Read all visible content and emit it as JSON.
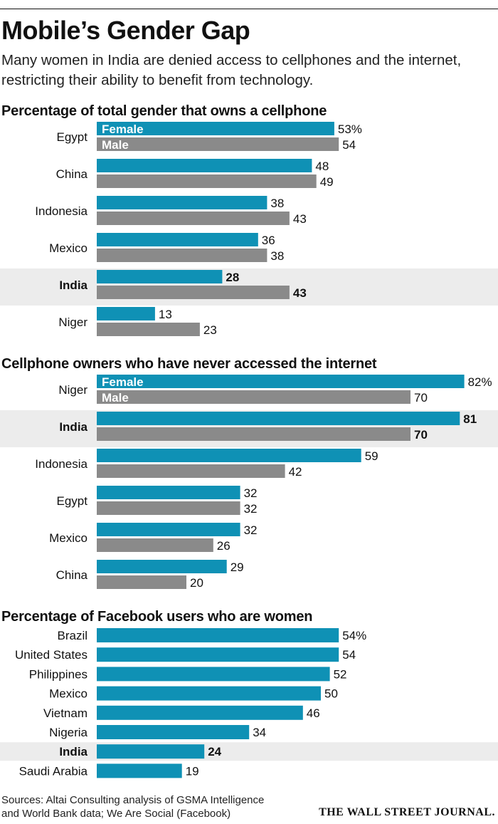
{
  "header": {
    "title": "Mobile’s Gender Gap",
    "subtitle": "Many women in India are denied access to cellphones and the internet, restricting their ability to benefit from technology."
  },
  "colors": {
    "female": "#0f91b5",
    "male": "#8a8a8a",
    "highlight": "#ececec"
  },
  "chart_data": [
    {
      "type": "bar",
      "orientation": "horizontal",
      "title": "Percentage of total gender that owns a cellphone",
      "categories": [
        "Egypt",
        "China",
        "Indonesia",
        "Mexico",
        "India",
        "Niger"
      ],
      "series": [
        {
          "name": "Female",
          "values": [
            53,
            48,
            38,
            36,
            28,
            13
          ],
          "labels": [
            "53%",
            "48",
            "38",
            "36",
            "28",
            "13"
          ]
        },
        {
          "name": "Male",
          "values": [
            54,
            49,
            43,
            38,
            43,
            23
          ],
          "labels": [
            "54",
            "49",
            "43",
            "38",
            "43",
            "23"
          ]
        }
      ],
      "highlight": "India",
      "legend": "inside first bars"
    },
    {
      "type": "bar",
      "orientation": "horizontal",
      "title": "Cellphone owners who have never accessed the internet",
      "categories": [
        "Niger",
        "India",
        "Indonesia",
        "Egypt",
        "Mexico",
        "China"
      ],
      "series": [
        {
          "name": "Female",
          "values": [
            82,
            81,
            59,
            32,
            32,
            29
          ],
          "labels": [
            "82%",
            "81",
            "59",
            "32",
            "32",
            "29"
          ]
        },
        {
          "name": "Male",
          "values": [
            70,
            70,
            42,
            32,
            26,
            20
          ],
          "labels": [
            "70",
            "70",
            "42",
            "32",
            "26",
            "20"
          ]
        }
      ],
      "highlight": "India",
      "legend": "inside first bars"
    },
    {
      "type": "bar",
      "orientation": "horizontal",
      "title": "Percentage of Facebook users who are women",
      "categories": [
        "Brazil",
        "United States",
        "Philippines",
        "Mexico",
        "Vietnam",
        "Nigeria",
        "India",
        "Saudi Arabia"
      ],
      "series": [
        {
          "values": [
            54,
            54,
            52,
            50,
            46,
            34,
            24,
            19
          ],
          "labels": [
            "54%",
            "54",
            "52",
            "50",
            "46",
            "34",
            "24",
            "19"
          ]
        }
      ],
      "highlight": "India"
    }
  ],
  "footer": {
    "sources_line1": "Sources: Altai Consulting analysis of GSMA Intelligence",
    "sources_line2": "and World Bank data; We Are Social (Facebook)",
    "brand": "THE WALL STREET JOURNAL."
  }
}
